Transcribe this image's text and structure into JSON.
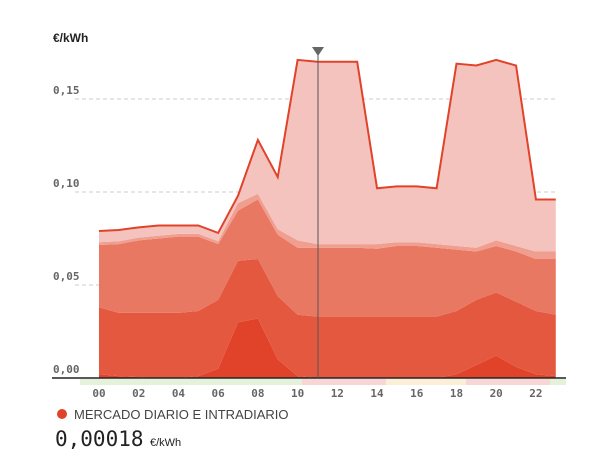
{
  "chart_data": {
    "type": "stacked_area",
    "y_label": "€/kWh",
    "categories": [
      "00",
      null,
      "02",
      null,
      "04",
      null,
      "06",
      null,
      "08",
      null,
      "10",
      null,
      "12",
      null,
      "14",
      null,
      "16",
      null,
      "18",
      null,
      "20",
      null,
      "22",
      null
    ],
    "series": [
      {
        "color": "#e0432a",
        "values": [
          0.002,
          0.001,
          0.0005,
          0,
          0,
          0.001,
          0.005,
          0.03,
          0.032,
          0.01,
          0.001,
          0,
          0,
          0,
          0,
          0,
          0,
          0,
          0.002,
          0.007,
          0.012,
          0.006,
          0.002,
          0.001
        ]
      },
      {
        "color": "#e4583f",
        "values": [
          0.036,
          0.034,
          0.0345,
          0.035,
          0.035,
          0.035,
          0.037,
          0.033,
          0.032,
          0.034,
          0.033,
          0.033,
          0.033,
          0.033,
          0.033,
          0.033,
          0.033,
          0.033,
          0.034,
          0.035,
          0.034,
          0.035,
          0.034,
          0.033
        ]
      },
      {
        "color": "#e87862",
        "values": [
          0.0335,
          0.037,
          0.039,
          0.04,
          0.041,
          0.04,
          0.03,
          0.027,
          0.032,
          0.033,
          0.036,
          0.037,
          0.037,
          0.037,
          0.0365,
          0.038,
          0.038,
          0.037,
          0.033,
          0.026,
          0.025,
          0.027,
          0.028,
          0.03
        ]
      },
      {
        "color": "#ef9e90",
        "values": [
          0.0015,
          0.0015,
          0.0015,
          0.0015,
          0.0015,
          0.0015,
          0.0015,
          0.004,
          0.003,
          0.003,
          0.004,
          0.002,
          0.002,
          0.002,
          0.0025,
          0.002,
          0.002,
          0.002,
          0.002,
          0.002,
          0.003,
          0.003,
          0.004,
          0.004
        ]
      },
      {
        "color": "#f5c3be",
        "values": [
          0.006,
          0.0061,
          0.0055,
          0.0055,
          0.0045,
          0.0045,
          0.0045,
          0.004,
          0.029,
          0.028,
          0.097,
          0.098,
          0.098,
          0.098,
          0.03,
          0.03,
          0.03,
          0.03,
          0.098,
          0.098,
          0.097,
          0.097,
          0.028,
          0.028
        ]
      }
    ],
    "line_color": "#e0432a",
    "ylim": [
      0,
      0.18
    ],
    "yticks": [
      {
        "value": 0,
        "label": "0,00"
      },
      {
        "value": 0.05,
        "label": "0,05"
      },
      {
        "value": 0.1,
        "label": "0,10"
      },
      {
        "value": 0.15,
        "label": "0,15"
      }
    ],
    "grid": true,
    "legend": {
      "label": "MERCADO DIARIO E INTRADIARIO",
      "color": "#e0432a",
      "value": "0,00018",
      "unit": "€/kWh"
    }
  }
}
